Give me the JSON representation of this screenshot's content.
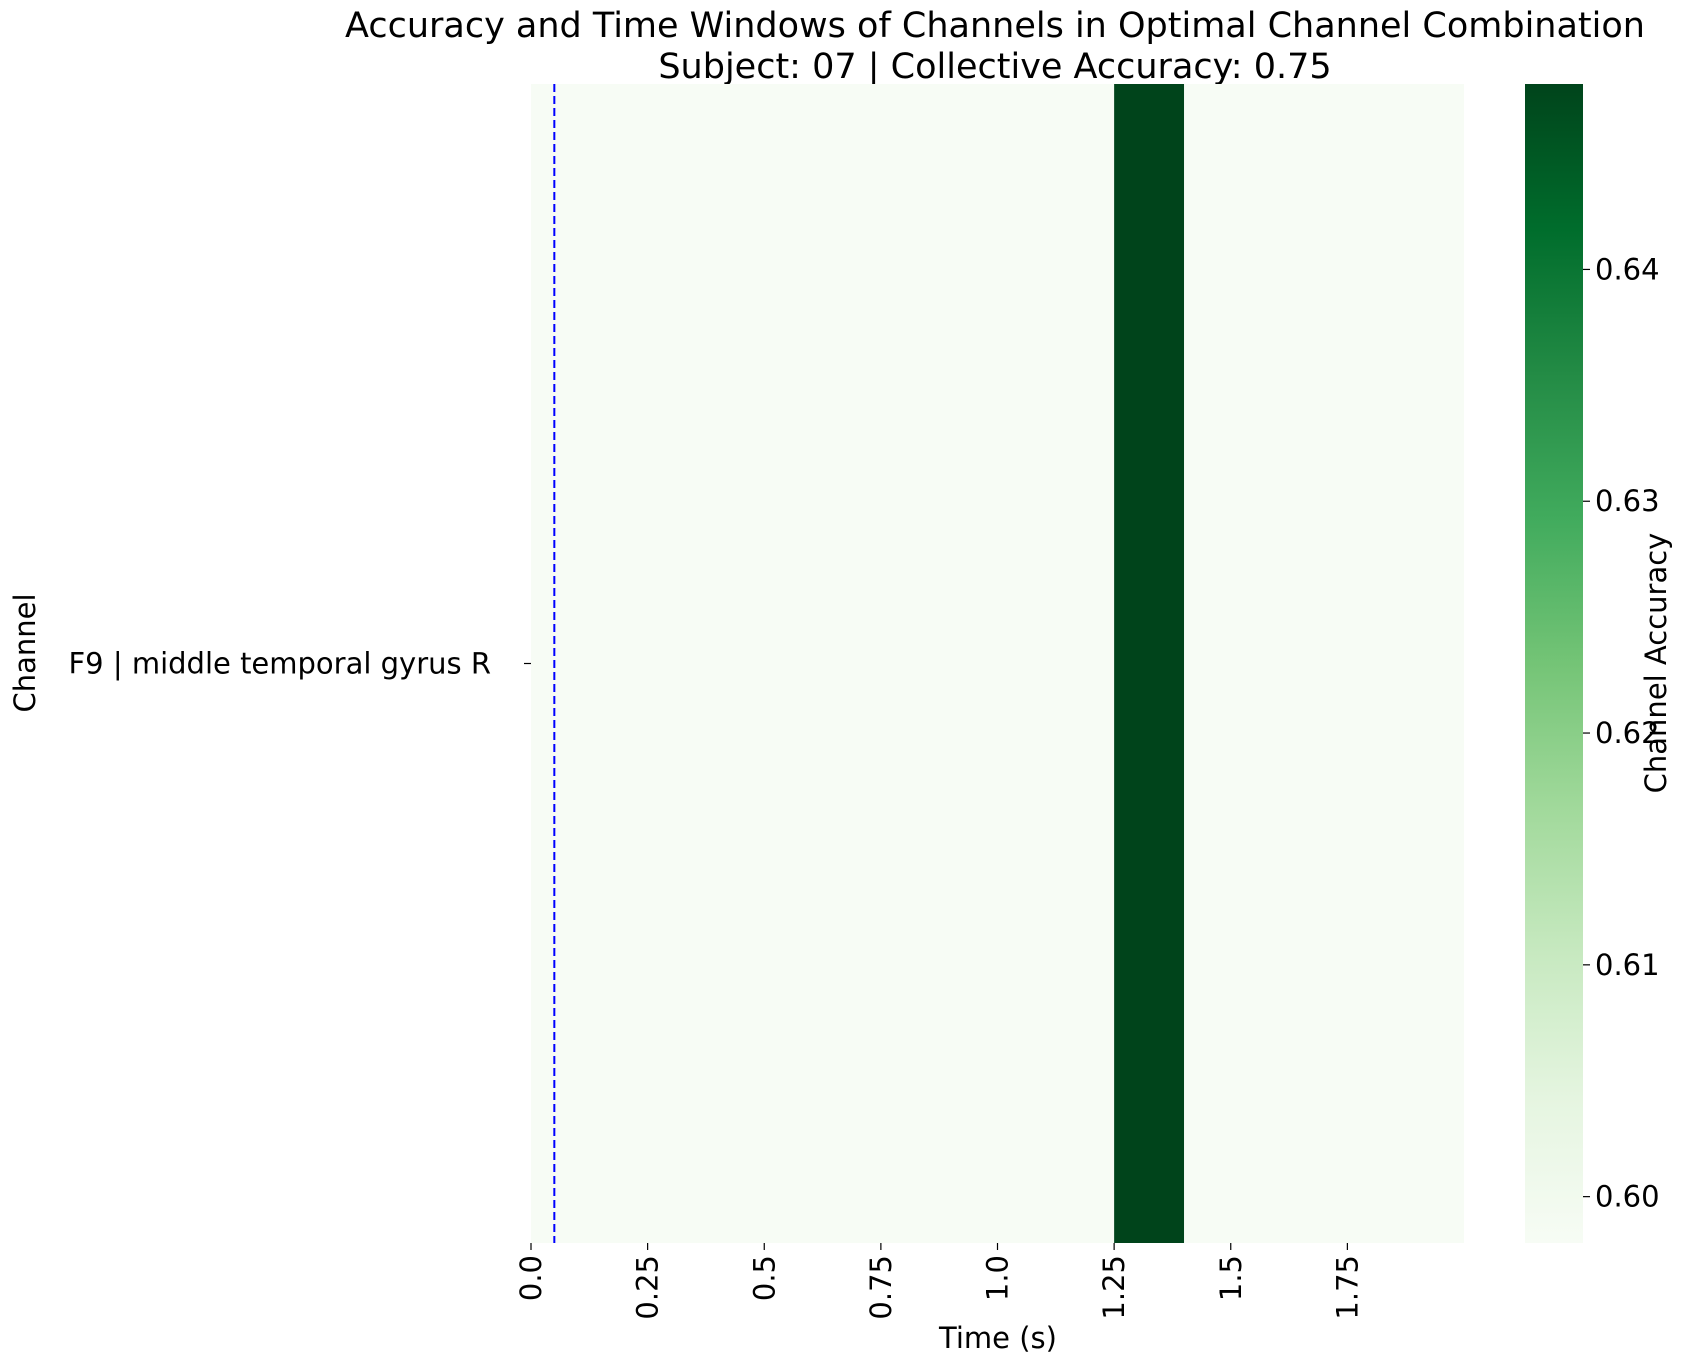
{
  "colors": {
    "background_cell": "#f7f7f7",
    "high_cell": "#00441b",
    "reference_line": "#0000ff",
    "colormap": [
      "#f7fcf5",
      "#e5f5e0",
      "#c7e9c0",
      "#a1d99b",
      "#74c476",
      "#41ab5d",
      "#238b45",
      "#006d2c",
      "#00441b"
    ]
  },
  "chart_data": {
    "type": "heatmap",
    "title": "Accuracy and Time Windows of Channels in Optimal Channel Combination",
    "subtitle": "Subject: 07 | Collective Accuracy: 0.75",
    "xlabel": "Time (s)",
    "ylabel": "Channel",
    "xlim": [
      0,
      2.0
    ],
    "x_tick_values": [
      0.0,
      0.25,
      0.5,
      0.75,
      1.0,
      1.25,
      1.5,
      1.75
    ],
    "x_tick_labels": [
      "0.0",
      "0.25",
      "0.5",
      "0.75",
      "1.0",
      "1.25",
      "1.5",
      "1.75"
    ],
    "channels": [
      "F9 | middle temporal gyrus R"
    ],
    "cells": [
      {
        "channel": "F9 | middle temporal gyrus R",
        "x_start": 0.0,
        "x_end": 1.25,
        "value": 0.598
      },
      {
        "channel": "F9 | middle temporal gyrus R",
        "x_start": 1.25,
        "x_end": 1.4,
        "value": 0.648
      },
      {
        "channel": "F9 | middle temporal gyrus R",
        "x_start": 1.4,
        "x_end": 2.0,
        "value": 0.598
      }
    ],
    "reference_line": {
      "x": 0.05,
      "style": "dashed"
    },
    "colorbar": {
      "label": "Channel Accuracy",
      "range": [
        0.598,
        0.648
      ],
      "tick_values": [
        0.6,
        0.61,
        0.62,
        0.63,
        0.64
      ],
      "tick_labels": [
        "0.60",
        "0.61",
        "0.62",
        "0.63",
        "0.64"
      ]
    },
    "grid": false,
    "legend": "none"
  }
}
